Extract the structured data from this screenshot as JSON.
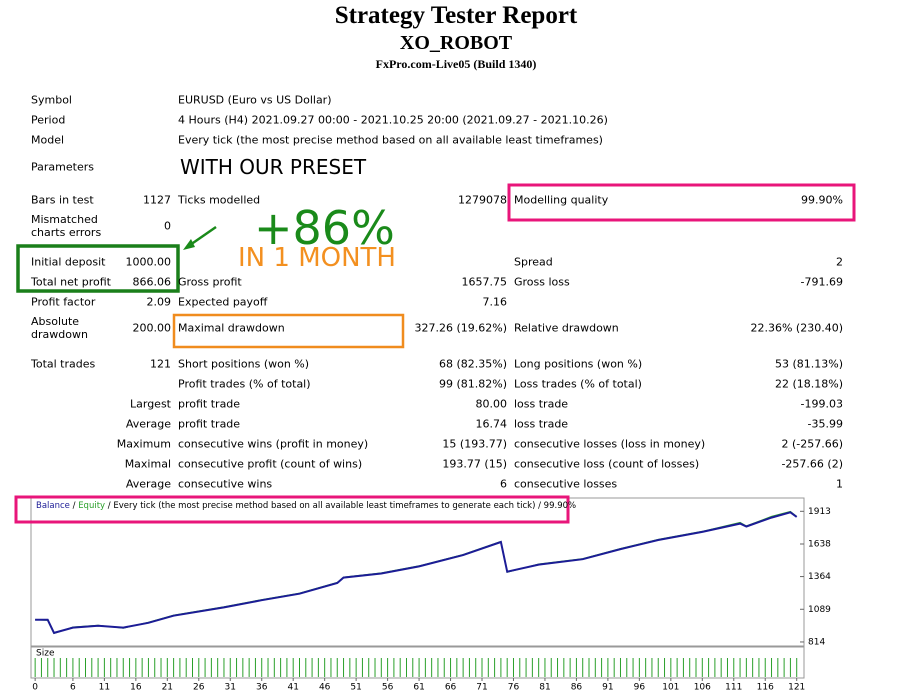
{
  "header": {
    "title": "Strategy Tester Report",
    "subtitle": "XO_ROBOT",
    "server": "FxPro.com-Live05 (Build 1340)"
  },
  "report": {
    "rows": [
      {
        "label": "Symbol",
        "label2": "EURUSD (Euro vs US Dollar)"
      },
      {
        "label": "Period",
        "label2": "4 Hours (H4) 2021.09.27 00:00 - 2021.10.25 20:00 (2021.09.27 - 2021.10.26)"
      },
      {
        "label": "Model",
        "label2": "Every tick (the most precise method based on all available least timeframes)"
      },
      {
        "label": "Parameters"
      },
      {
        "label": "Bars in test",
        "value": "1127",
        "label2": "Ticks modelled",
        "value2": "1279078",
        "label3": "Modelling quality",
        "value3": "99.90%"
      },
      {
        "label": "Mismatched charts errors",
        "value": "0"
      },
      {
        "label": "Initial deposit",
        "value": "1000.00",
        "label3": "Spread",
        "value3": "2"
      },
      {
        "label": "Total net profit",
        "value": "866.06",
        "label2": "Gross profit",
        "value2": "1657.75",
        "label3": "Gross loss",
        "value3": "-791.69"
      },
      {
        "label": "Profit factor",
        "value": "2.09",
        "label2": "Expected payoff",
        "value2": "7.16"
      },
      {
        "label": "Absolute drawdown",
        "value": "200.00",
        "label2": "Maximal drawdown",
        "value2": "327.26 (19.62%)",
        "label3": "Relative drawdown",
        "value3": "22.36% (230.40)"
      },
      {
        "label": "Total trades",
        "value": "121",
        "label2": "Short positions (won %)",
        "value2": "68 (82.35%)",
        "label3": "Long positions (won %)",
        "value3": "53 (81.13%)"
      },
      {
        "label2": "Profit trades (% of total)",
        "value2": "99 (81.82%)",
        "label3": "Loss trades (% of total)",
        "value3": "22 (18.18%)"
      },
      {
        "value": "Largest",
        "label2": "profit trade",
        "value2": "80.00",
        "label3": "loss trade",
        "value3": "-199.03"
      },
      {
        "value": "Average",
        "label2": "profit trade",
        "value2": "16.74",
        "label3": "loss trade",
        "value3": "-35.99"
      },
      {
        "value": "Maximum",
        "label2": "consecutive wins (profit in money)",
        "value2": "15 (193.77)",
        "label3": "consecutive losses (loss in money)",
        "value3": "2 (-257.66)"
      },
      {
        "value": "Maximal",
        "label2": "consecutive profit (count of wins)",
        "value2": "193.77 (15)",
        "label3": "consecutive loss (count of losses)",
        "value3": "-257.66 (2)"
      },
      {
        "value": "Average",
        "label2": "consecutive wins",
        "value2": "6",
        "label3": "consecutive losses",
        "value3": "1"
      }
    ]
  },
  "annotations": {
    "preset": "WITH OUR PRESET",
    "gain": "+86%",
    "period": "IN 1 MONTH"
  },
  "chart_data": {
    "type": "line",
    "separator": "/",
    "model": "Every tick (the most precise method based on all available least timeframes to generate each tick)",
    "quality": "99.90%",
    "size_label": "Size",
    "series": [
      {
        "name": "Balance",
        "color": "#1c1c96",
        "x": [
          0,
          2,
          3,
          6,
          10,
          14,
          18,
          22,
          30,
          36,
          42,
          48,
          49,
          55,
          61,
          68,
          74,
          75,
          80,
          87,
          93,
          99,
          106,
          112,
          113,
          117,
          120,
          121
        ],
        "values": [
          1000,
          1000,
          890,
          935,
          950,
          935,
          975,
          1035,
          1105,
          1165,
          1220,
          1310,
          1355,
          1390,
          1450,
          1545,
          1655,
          1405,
          1465,
          1510,
          1595,
          1672,
          1740,
          1810,
          1785,
          1860,
          1905,
          1866
        ]
      },
      {
        "name": "Equity",
        "color": "#2aa02a",
        "x": [
          0,
          2,
          3,
          6,
          10,
          14,
          18,
          22,
          30,
          36,
          42,
          48,
          49,
          55,
          61,
          68,
          74,
          75,
          80,
          87,
          93,
          99,
          106,
          112,
          113,
          117,
          120,
          121
        ],
        "values": [
          1000,
          995,
          885,
          940,
          955,
          930,
          980,
          1040,
          1110,
          1170,
          1225,
          1315,
          1360,
          1395,
          1455,
          1550,
          1660,
          1400,
          1470,
          1515,
          1600,
          1677,
          1745,
          1820,
          1790,
          1870,
          1912,
          1870
        ]
      }
    ],
    "xlim": [
      -0.5,
      122
    ],
    "xticks": [
      0,
      6,
      11,
      16,
      21,
      26,
      31,
      36,
      41,
      46,
      51,
      56,
      61,
      66,
      71,
      76,
      81,
      86,
      91,
      96,
      101,
      106,
      111,
      116,
      121
    ],
    "ylim": [
      780,
      2025
    ],
    "yticks": [
      814,
      1089,
      1364,
      1638,
      1913
    ]
  }
}
